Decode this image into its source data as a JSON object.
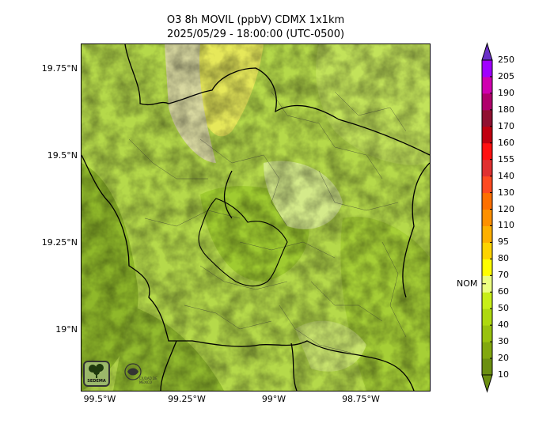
{
  "title": {
    "line1": "O3 8h MOVIL (ppbV) CDMX 1x1km",
    "line2": "2025/05/29 - 18:00:00 (UTC-0500)"
  },
  "axes": {
    "lat_labels": [
      "19.75°N",
      "19.5°N",
      "19.25°N",
      "19°N"
    ],
    "lon_labels": [
      "99.5°W",
      "99.25°W",
      "99°W",
      "98.75°W"
    ]
  },
  "colorbar": {
    "levels": [
      10,
      20,
      30,
      40,
      50,
      60,
      70,
      80,
      95,
      110,
      120,
      130,
      140,
      155,
      160,
      170,
      180,
      190,
      205,
      250
    ],
    "level_labels": [
      "10",
      "20",
      "30",
      "40",
      "50",
      "60",
      "70",
      "80",
      "95",
      "110",
      "120",
      "130",
      "140",
      "155",
      "160",
      "170",
      "180",
      "190",
      "205",
      "250"
    ],
    "colors": [
      "#6b8f10",
      "#82a80f",
      "#99c20e",
      "#aed90f",
      "#c8ef18",
      "#ecff80",
      "#ffff00",
      "#ffd400",
      "#ffb000",
      "#ff9000",
      "#ff7000",
      "#ff4a20",
      "#e03030",
      "#ff1010",
      "#c00010",
      "#901030",
      "#b0006b",
      "#d000b0",
      "#a000ff",
      "#6a30c8"
    ],
    "marker_label": "NOM",
    "marker_value": 65
  },
  "logos": {
    "left_text": "SEDEMA",
    "right_text": "CIUDAD DE MÉXICO"
  }
}
